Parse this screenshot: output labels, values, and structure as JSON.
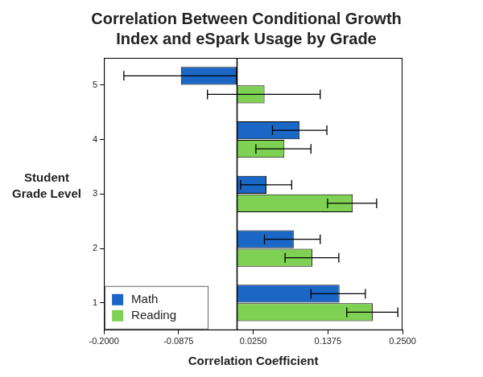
{
  "chart_data": {
    "type": "bar",
    "orientation": "horizontal",
    "title": "Correlation Between Conditional Growth Index and eSpark Usage by Grade",
    "xlabel": "Correlation Coefficient",
    "ylabel": "Student Grade Level",
    "categories": [
      "5",
      "4",
      "3",
      "2",
      "1"
    ],
    "series": [
      {
        "name": "Math",
        "color": "#1b67c6",
        "values": [
          -0.084,
          0.095,
          0.045,
          0.086,
          0.155
        ],
        "error_low": [
          -0.17,
          0.054,
          0.006,
          0.042,
          0.112
        ],
        "error_high": [
          0.0,
          0.136,
          0.083,
          0.126,
          0.194
        ]
      },
      {
        "name": "Reading",
        "color": "#7ed152",
        "values": [
          0.042,
          0.072,
          0.175,
          0.114,
          0.205
        ],
        "error_low": [
          -0.044,
          0.029,
          0.137,
          0.073,
          0.166
        ],
        "error_high": [
          0.126,
          0.112,
          0.211,
          0.154,
          0.243
        ]
      }
    ],
    "xlim": [
      -0.2,
      0.25
    ],
    "xticks": [
      {
        "value": -0.2,
        "label": "-0.2000"
      },
      {
        "value": -0.0875,
        "label": "-0.0875"
      },
      {
        "value": 0.025,
        "label": "0.0250"
      },
      {
        "value": 0.1375,
        "label": "0.1375"
      },
      {
        "value": 0.25,
        "label": "0.2500"
      }
    ],
    "grid": false,
    "legend": "lower left"
  }
}
